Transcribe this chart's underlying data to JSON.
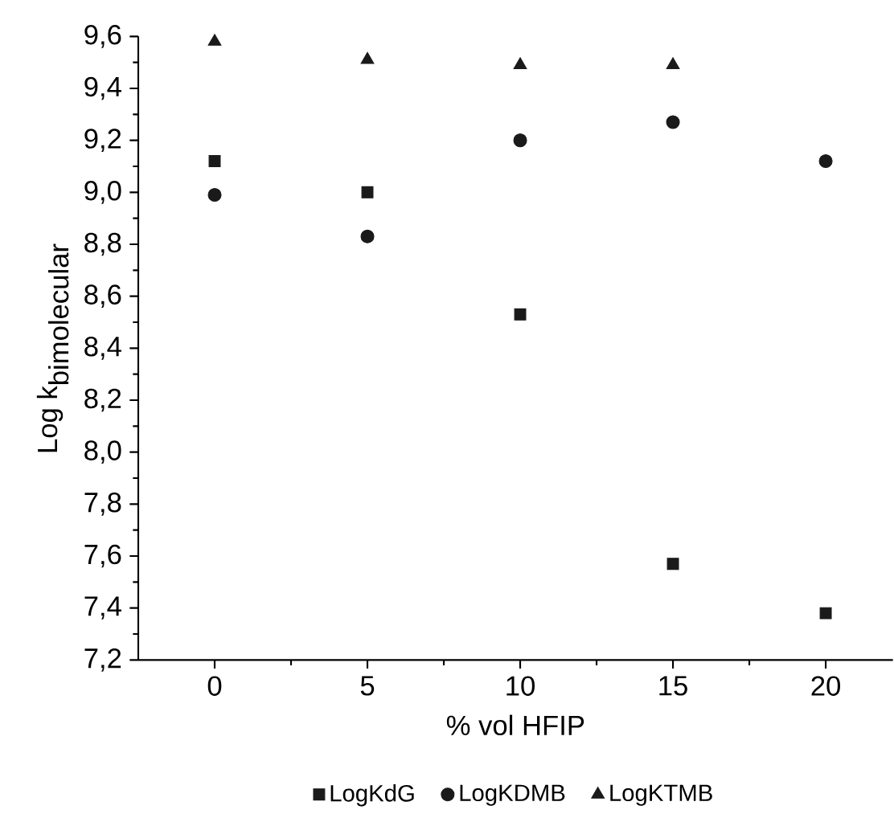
{
  "chart_data": {
    "type": "scatter",
    "xlabel": "% vol HFIP",
    "ylabel": "\\mbox{Log k}_{\\mbox{bimolecular}}",
    "x": [
      0,
      5,
      10,
      15,
      20
    ],
    "series": [
      {
        "name": "LogKdG",
        "color": "#1a1a1a",
        "marker": "square",
        "values": [
          9.12,
          9.0,
          8.53,
          7.57,
          7.38
        ]
      },
      {
        "name": "LogKDMB",
        "color": "#1a1a1a",
        "marker": "circle",
        "values": [
          8.99,
          8.83,
          9.2,
          9.27,
          9.12
        ]
      },
      {
        "name": "LogKTMB",
        "color": "#1a1a1a",
        "marker": "triangle",
        "values": [
          9.58,
          9.51,
          9.49,
          9.49,
          null
        ]
      }
    ],
    "xlim": [
      -2.5,
      22.2
    ],
    "xticks": [
      0,
      5,
      10,
      15,
      20
    ],
    "ylim": [
      7.2,
      9.6
    ],
    "yticks": [
      {
        "value": 7.2,
        "label": "7,2"
      },
      {
        "value": 7.4,
        "label": "7,4"
      },
      {
        "value": 7.6,
        "label": "7,6"
      },
      {
        "value": 7.8,
        "label": "7,8"
      },
      {
        "value": 8.0,
        "label": "8,0"
      },
      {
        "value": 8.2,
        "label": "8,2"
      },
      {
        "value": 8.4,
        "label": "8,4"
      },
      {
        "value": 8.6,
        "label": "8,6"
      },
      {
        "value": 8.8,
        "label": "8,8"
      },
      {
        "value": 9.0,
        "label": "9,0"
      },
      {
        "value": 9.2,
        "label": "9,2"
      },
      {
        "value": 9.4,
        "label": "9,4"
      },
      {
        "value": 9.6,
        "label": "9,6"
      }
    ],
    "legend": "bottom"
  }
}
